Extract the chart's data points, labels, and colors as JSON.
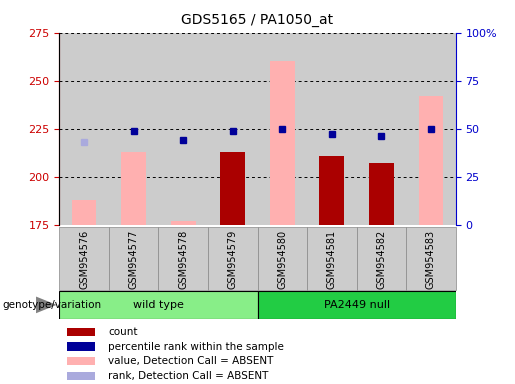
{
  "title": "GDS5165 / PA1050_at",
  "samples": [
    "GSM954576",
    "GSM954577",
    "GSM954578",
    "GSM954579",
    "GSM954580",
    "GSM954581",
    "GSM954582",
    "GSM954583"
  ],
  "groups": [
    {
      "label": "wild type",
      "indices": [
        0,
        1,
        2,
        3
      ],
      "color": "#88EE88"
    },
    {
      "label": "PA2449 null",
      "indices": [
        4,
        5,
        6,
        7
      ],
      "color": "#22CC44"
    }
  ],
  "ylim_left": [
    175,
    275
  ],
  "ylim_right": [
    0,
    100
  ],
  "yticks_left": [
    175,
    200,
    225,
    250,
    275
  ],
  "yticks_right": [
    0,
    25,
    50,
    75,
    100
  ],
  "ytick_labels_right": [
    "0",
    "25",
    "50",
    "75",
    "100%"
  ],
  "value_absent": [
    188,
    213,
    177,
    null,
    260,
    null,
    null,
    242
  ],
  "count": [
    null,
    null,
    null,
    213,
    null,
    211,
    207,
    null
  ],
  "percentile_rank_left_scale": [
    null,
    224,
    219,
    224,
    225,
    222,
    221,
    225
  ],
  "rank_absent_left_scale": [
    218,
    null,
    null,
    null,
    null,
    null,
    null,
    null
  ],
  "bar_width": 0.5,
  "left_axis_color": "#CC0000",
  "right_axis_color": "#0000CC",
  "column_bg_color": "#CCCCCC",
  "absent_bar_color": "#FFB0B0",
  "count_bar_color": "#AA0000",
  "percentile_dot_color": "#000099",
  "rank_absent_dot_color": "#AAAADD"
}
